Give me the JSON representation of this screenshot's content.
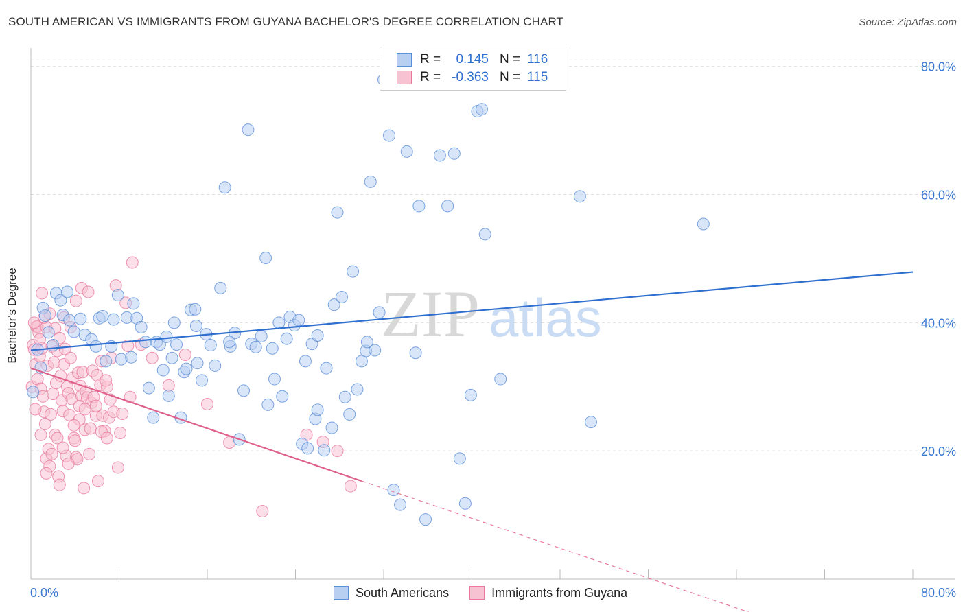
{
  "title": "SOUTH AMERICAN VS IMMIGRANTS FROM GUYANA BACHELOR'S DEGREE CORRELATION CHART",
  "source": "Source: ZipAtlas.com",
  "watermark": {
    "zip": "ZIP",
    "atlas": "atlas"
  },
  "legend": {
    "rows": [
      {
        "r_label": "R =",
        "r_value": "0.145",
        "n_label": "N =",
        "n_value": "116",
        "color": "#5b8fd8",
        "fill": "#b9cff2"
      },
      {
        "r_label": "R =",
        "r_value": "-0.363",
        "n_label": "N =",
        "n_value": "115",
        "color": "#e8799c",
        "fill": "#f7c3d3"
      }
    ]
  },
  "bottom_legend": [
    {
      "label": "South Americans",
      "color": "#5b8fd8",
      "fill": "#b9cff2"
    },
    {
      "label": "Immigrants from Guyana",
      "color": "#e8799c",
      "fill": "#f7c3d3"
    }
  ],
  "chart_data": {
    "type": "scatter",
    "title": "SOUTH AMERICAN VS IMMIGRANTS FROM GUYANA BACHELOR'S DEGREE CORRELATION CHART",
    "xlabel": "",
    "ylabel": "Bachelor's Degree",
    "xlim": [
      0,
      80
    ],
    "ylim": [
      0,
      82
    ],
    "x_tick_labels": [
      "0.0%",
      "80.0%"
    ],
    "y_tick_values": [
      20,
      40,
      60,
      80
    ],
    "y_tick_labels": [
      "20.0%",
      "40.0%",
      "60.0%",
      "80.0%"
    ],
    "grid": true,
    "series": [
      {
        "name": "South Americans",
        "color": "#5b8fd8",
        "fill": "#b9cff2",
        "trend": {
          "x": [
            0,
            80
          ],
          "y": [
            35.7,
            47.9
          ],
          "style": "solid"
        },
        "points": [
          [
            0.2,
            29.2
          ],
          [
            1.1,
            42.3
          ],
          [
            1.3,
            41.1
          ],
          [
            2.3,
            44.6
          ],
          [
            2.7,
            43.5
          ],
          [
            2.9,
            41.2
          ],
          [
            3.3,
            44.8
          ],
          [
            3.5,
            40.4
          ],
          [
            4.5,
            40.6
          ],
          [
            4.9,
            38.1
          ],
          [
            5.5,
            37.4
          ],
          [
            5.9,
            36.3
          ],
          [
            6.2,
            40.7
          ],
          [
            6.8,
            34.0
          ],
          [
            7.3,
            36.3
          ],
          [
            7.5,
            40.5
          ],
          [
            7.9,
            44.3
          ],
          [
            8.2,
            34.3
          ],
          [
            8.7,
            40.8
          ],
          [
            9.1,
            34.6
          ],
          [
            9.6,
            40.7
          ],
          [
            10.0,
            39.3
          ],
          [
            10.4,
            37.0
          ],
          [
            10.7,
            29.8
          ],
          [
            11.1,
            25.2
          ],
          [
            11.4,
            37.0
          ],
          [
            11.7,
            36.6
          ],
          [
            12.0,
            32.6
          ],
          [
            12.3,
            37.8
          ],
          [
            12.5,
            28.6
          ],
          [
            12.8,
            34.5
          ],
          [
            13.2,
            36.6
          ],
          [
            13.6,
            25.2
          ],
          [
            13.9,
            32.3
          ],
          [
            14.1,
            32.8
          ],
          [
            14.5,
            42.0
          ],
          [
            14.9,
            42.1
          ],
          [
            15.1,
            33.7
          ],
          [
            15.5,
            31.0
          ],
          [
            15.9,
            38.2
          ],
          [
            16.3,
            36.5
          ],
          [
            16.7,
            33.3
          ],
          [
            17.2,
            45.4
          ],
          [
            17.6,
            61.1
          ],
          [
            18.1,
            36.3
          ],
          [
            18.5,
            38.4
          ],
          [
            18.9,
            21.8
          ],
          [
            19.3,
            29.4
          ],
          [
            19.7,
            70.1
          ],
          [
            20.0,
            36.7
          ],
          [
            20.4,
            36.2
          ],
          [
            20.9,
            37.9
          ],
          [
            21.3,
            50.1
          ],
          [
            21.5,
            27.2
          ],
          [
            21.9,
            36.0
          ],
          [
            22.1,
            31.2
          ],
          [
            22.8,
            28.5
          ],
          [
            23.2,
            37.5
          ],
          [
            23.5,
            40.9
          ],
          [
            23.9,
            39.6
          ],
          [
            24.3,
            40.4
          ],
          [
            24.6,
            21.1
          ],
          [
            24.9,
            34.0
          ],
          [
            25.1,
            20.4
          ],
          [
            25.5,
            36.7
          ],
          [
            25.8,
            25.0
          ],
          [
            26.0,
            26.4
          ],
          [
            26.6,
            20.1
          ],
          [
            26.8,
            32.9
          ],
          [
            27.3,
            23.6
          ],
          [
            27.5,
            42.8
          ],
          [
            27.8,
            57.2
          ],
          [
            28.2,
            44.0
          ],
          [
            28.5,
            28.4
          ],
          [
            28.9,
            25.7
          ],
          [
            29.2,
            48.0
          ],
          [
            29.6,
            29.6
          ],
          [
            30.0,
            34.0
          ],
          [
            30.4,
            35.6
          ],
          [
            30.8,
            62.0
          ],
          [
            31.2,
            35.7
          ],
          [
            31.6,
            41.6
          ],
          [
            32.0,
            77.9
          ],
          [
            32.5,
            69.2
          ],
          [
            32.9,
            13.9
          ],
          [
            33.5,
            11.6
          ],
          [
            34.1,
            66.7
          ],
          [
            34.9,
            35.3
          ],
          [
            35.2,
            58.2
          ],
          [
            35.8,
            9.3
          ],
          [
            37.1,
            66.1
          ],
          [
            37.8,
            58.2
          ],
          [
            38.4,
            66.4
          ],
          [
            38.9,
            18.8
          ],
          [
            39.4,
            11.8
          ],
          [
            39.9,
            28.7
          ],
          [
            40.5,
            73.0
          ],
          [
            40.9,
            73.3
          ],
          [
            41.2,
            53.8
          ],
          [
            42.6,
            31.2
          ],
          [
            49.8,
            59.7
          ],
          [
            50.8,
            24.5
          ],
          [
            61.0,
            55.4
          ],
          [
            0.6,
            35.8
          ],
          [
            1.6,
            38.5
          ],
          [
            3.9,
            38.6
          ],
          [
            6.5,
            41.0
          ],
          [
            9.3,
            43.0
          ],
          [
            13.0,
            40.0
          ],
          [
            15.0,
            39.5
          ],
          [
            18.0,
            37.0
          ],
          [
            22.5,
            40.0
          ],
          [
            26.0,
            38.0
          ],
          [
            30.5,
            37.0
          ],
          [
            0.9,
            33.0
          ],
          [
            2.0,
            36.5
          ]
        ]
      },
      {
        "name": "Immigrants from Guyana",
        "color": "#e8799c",
        "fill": "#f7c3d3",
        "trend": {
          "x": [
            0,
            30,
            70
          ],
          "y": [
            32.9,
            15.3,
            -8.0
          ],
          "solid_until": 30
        },
        "points": [
          [
            0.1,
            30.0
          ],
          [
            0.2,
            36.5
          ],
          [
            0.3,
            35.8
          ],
          [
            0.4,
            33.5
          ],
          [
            0.5,
            39.4
          ],
          [
            0.6,
            39.4
          ],
          [
            0.6,
            31.2
          ],
          [
            0.7,
            38.5
          ],
          [
            0.8,
            34.8
          ],
          [
            0.9,
            29.7
          ],
          [
            1.0,
            36.0
          ],
          [
            1.0,
            44.6
          ],
          [
            1.1,
            28.5
          ],
          [
            1.2,
            26.1
          ],
          [
            1.3,
            24.2
          ],
          [
            1.4,
            39.3
          ],
          [
            1.4,
            18.8
          ],
          [
            1.5,
            33.3
          ],
          [
            1.6,
            20.3
          ],
          [
            1.7,
            17.6
          ],
          [
            1.8,
            25.7
          ],
          [
            1.9,
            36.3
          ],
          [
            2.0,
            28.9
          ],
          [
            2.1,
            33.8
          ],
          [
            2.2,
            22.5
          ],
          [
            2.3,
            30.6
          ],
          [
            2.4,
            35.6
          ],
          [
            2.5,
            16.0
          ],
          [
            2.6,
            14.7
          ],
          [
            2.7,
            31.7
          ],
          [
            2.8,
            27.9
          ],
          [
            2.9,
            26.2
          ],
          [
            3.0,
            33.5
          ],
          [
            3.1,
            35.9
          ],
          [
            3.2,
            19.2
          ],
          [
            3.3,
            30.0
          ],
          [
            3.4,
            29.0
          ],
          [
            3.5,
            25.6
          ],
          [
            3.6,
            34.5
          ],
          [
            3.7,
            28.1
          ],
          [
            3.8,
            31.4
          ],
          [
            3.9,
            22.0
          ],
          [
            4.0,
            21.6
          ],
          [
            4.1,
            19.0
          ],
          [
            4.2,
            18.7
          ],
          [
            4.3,
            32.2
          ],
          [
            4.4,
            24.9
          ],
          [
            4.5,
            30.1
          ],
          [
            4.6,
            28.6
          ],
          [
            4.7,
            32.3
          ],
          [
            4.8,
            14.2
          ],
          [
            4.9,
            23.3
          ],
          [
            5.0,
            29.3
          ],
          [
            5.1,
            28.3
          ],
          [
            5.3,
            19.5
          ],
          [
            5.5,
            27.5
          ],
          [
            5.7,
            28.4
          ],
          [
            5.9,
            25.5
          ],
          [
            6.1,
            15.3
          ],
          [
            6.3,
            30.3
          ],
          [
            6.5,
            25.5
          ],
          [
            6.7,
            23.1
          ],
          [
            6.9,
            30.0
          ],
          [
            7.1,
            25.2
          ],
          [
            7.3,
            34.5
          ],
          [
            7.5,
            26.1
          ],
          [
            7.7,
            45.8
          ],
          [
            7.9,
            17.4
          ],
          [
            8.1,
            22.8
          ],
          [
            8.3,
            25.8
          ],
          [
            8.6,
            43.1
          ],
          [
            8.8,
            36.4
          ],
          [
            9.0,
            28.4
          ],
          [
            9.2,
            49.4
          ],
          [
            10.0,
            36.6
          ],
          [
            11.0,
            34.5
          ],
          [
            12.5,
            30.2
          ],
          [
            14.0,
            35.0
          ],
          [
            16.0,
            27.3
          ],
          [
            18.0,
            21.3
          ],
          [
            21.0,
            10.6
          ],
          [
            25.0,
            22.5
          ],
          [
            26.5,
            21.4
          ],
          [
            27.8,
            20.0
          ],
          [
            29.0,
            14.5
          ],
          [
            0.3,
            40.0
          ],
          [
            0.8,
            37.4
          ],
          [
            1.2,
            40.8
          ],
          [
            1.7,
            41.4
          ],
          [
            2.2,
            39.1
          ],
          [
            2.6,
            37.6
          ],
          [
            3.0,
            40.8
          ],
          [
            3.6,
            39.3
          ],
          [
            4.1,
            43.4
          ],
          [
            4.6,
            45.4
          ],
          [
            5.2,
            44.8
          ],
          [
            5.6,
            32.5
          ],
          [
            6.0,
            31.8
          ],
          [
            6.4,
            34.0
          ],
          [
            6.8,
            31.0
          ],
          [
            7.2,
            28.0
          ],
          [
            0.4,
            26.5
          ],
          [
            0.9,
            22.5
          ],
          [
            1.4,
            16.5
          ],
          [
            1.9,
            19.5
          ],
          [
            2.4,
            22.0
          ],
          [
            2.9,
            20.5
          ],
          [
            3.4,
            18.0
          ],
          [
            3.9,
            24.0
          ],
          [
            4.4,
            27.0
          ],
          [
            4.9,
            26.5
          ],
          [
            5.4,
            23.5
          ],
          [
            5.9,
            27.0
          ],
          [
            6.4,
            23.0
          ],
          [
            6.9,
            22.0
          ]
        ]
      }
    ]
  }
}
